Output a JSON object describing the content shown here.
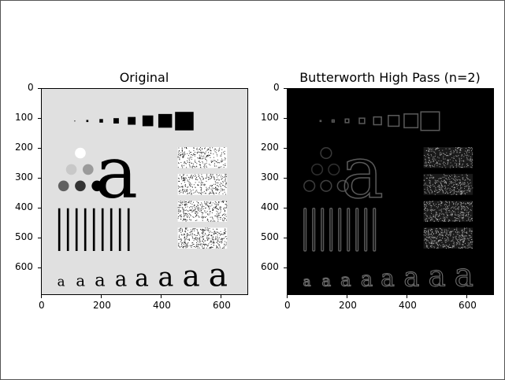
{
  "figure": {
    "panels": [
      {
        "title": "Original",
        "background": "#e0e0e0",
        "x_ticks": [
          "0",
          "200",
          "400",
          "600"
        ],
        "y_ticks": [
          "0",
          "100",
          "200",
          "300",
          "400",
          "500",
          "600"
        ]
      },
      {
        "title": "Butterworth High Pass (n=2)",
        "background": "#000000",
        "x_ticks": [
          "0",
          "200",
          "400",
          "600"
        ],
        "y_ticks": [
          "0",
          "100",
          "200",
          "300",
          "400",
          "500",
          "600"
        ]
      }
    ],
    "glyph": "a"
  },
  "colors": {
    "original_fg": "#000000",
    "original_bg": "#e0e0e0",
    "filtered_edge": "#5a5a5a"
  }
}
